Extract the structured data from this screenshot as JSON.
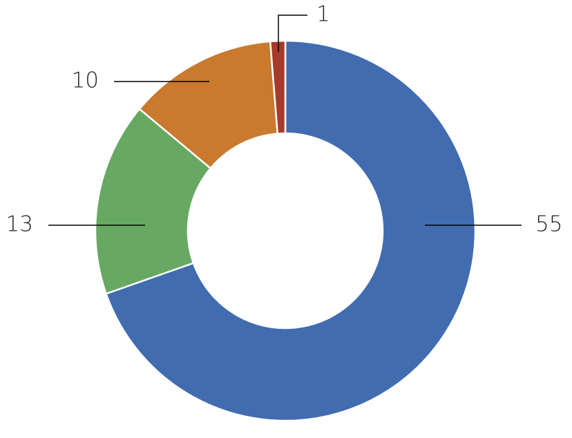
{
  "chart_data": {
    "type": "donut",
    "categories": [
      null,
      null,
      null,
      null
    ],
    "values": [
      55,
      13,
      10,
      1
    ],
    "colors": [
      "#416cb0",
      "#67a963",
      "#c97a2e",
      "#a63a2b"
    ],
    "data_labels": true
  }
}
